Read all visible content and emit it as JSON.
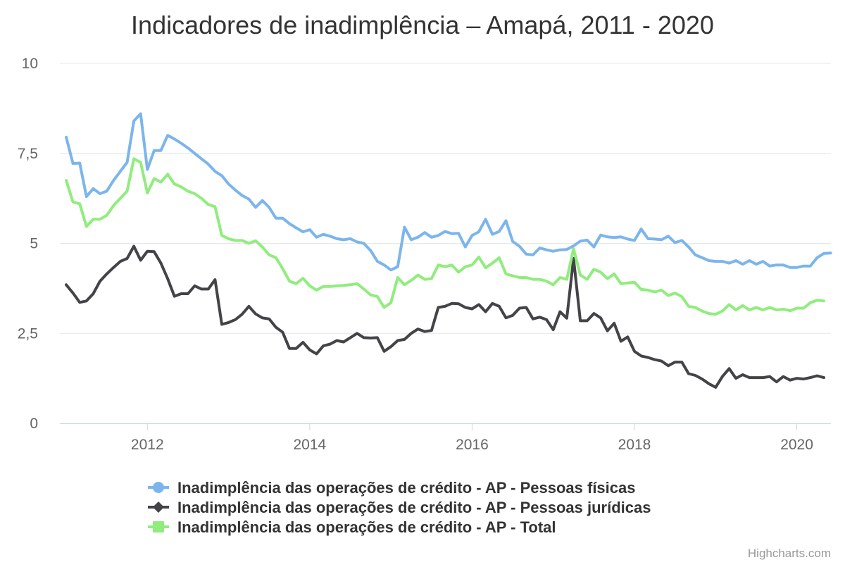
{
  "chart_data": {
    "type": "line",
    "title": "Indicadores de inadimplência – Amapá, 2011 - 2020",
    "credits": "Highcharts.com",
    "legend_position": "bottom-center",
    "grid": true,
    "x_range": [
      "2011-01",
      "2020-05"
    ],
    "ylim": [
      0,
      10
    ],
    "y_ticks": [
      {
        "value": 0,
        "label": "0"
      },
      {
        "value": 2.5,
        "label": "2,5"
      },
      {
        "value": 5,
        "label": "5"
      },
      {
        "value": 7.5,
        "label": "7,5"
      },
      {
        "value": 10,
        "label": "10"
      }
    ],
    "x_ticks": [
      {
        "value": "2012-01",
        "label": "2012"
      },
      {
        "value": "2014-01",
        "label": "2014"
      },
      {
        "value": "2016-01",
        "label": "2016"
      },
      {
        "value": "2018-01",
        "label": "2018"
      },
      {
        "value": "2020-01",
        "label": "2020"
      }
    ],
    "start_month": "2011-01",
    "series": [
      {
        "name": "Inadimplência das operações de crédito - AP - Pessoas físicas",
        "color": "#7cb5ec",
        "marker": "circle",
        "values": [
          7.95,
          7.22,
          7.23,
          6.3,
          6.52,
          6.38,
          6.45,
          6.75,
          7.0,
          7.25,
          8.4,
          8.6,
          7.05,
          7.58,
          7.58,
          8.0,
          7.9,
          7.78,
          7.65,
          7.5,
          7.35,
          7.2,
          7.0,
          6.88,
          6.65,
          6.48,
          6.33,
          6.23,
          6.0,
          6.19,
          6.0,
          5.7,
          5.7,
          5.55,
          5.43,
          5.32,
          5.38,
          5.17,
          5.25,
          5.2,
          5.13,
          5.1,
          5.13,
          5.04,
          5.0,
          4.8,
          4.5,
          4.4,
          4.26,
          4.35,
          5.45,
          5.1,
          5.17,
          5.3,
          5.17,
          5.22,
          5.33,
          5.27,
          5.28,
          4.9,
          5.22,
          5.32,
          5.67,
          5.25,
          5.33,
          5.63,
          5.05,
          4.92,
          4.7,
          4.68,
          4.87,
          4.82,
          4.78,
          4.82,
          4.83,
          4.93,
          5.06,
          5.09,
          4.9,
          5.23,
          5.18,
          5.16,
          5.18,
          5.12,
          5.08,
          5.4,
          5.13,
          5.12,
          5.1,
          5.2,
          5.02,
          5.08,
          4.9,
          4.68,
          4.6,
          4.52,
          4.5,
          4.5,
          4.45,
          4.52,
          4.42,
          4.52,
          4.42,
          4.5,
          4.37,
          4.4,
          4.4,
          4.33,
          4.33,
          4.37,
          4.37,
          4.6,
          4.72,
          4.73
        ]
      },
      {
        "name": "Inadimplência das operações de crédito - AP - Pessoas jurídicas",
        "color": "#434348",
        "marker": "diamond",
        "values": [
          3.85,
          3.62,
          3.36,
          3.4,
          3.6,
          3.95,
          4.15,
          4.33,
          4.5,
          4.58,
          4.92,
          4.53,
          4.78,
          4.77,
          4.45,
          4.02,
          3.53,
          3.6,
          3.6,
          3.82,
          3.73,
          3.73,
          3.99,
          2.75,
          2.8,
          2.88,
          3.03,
          3.25,
          3.04,
          2.93,
          2.9,
          2.67,
          2.53,
          2.08,
          2.08,
          2.25,
          2.04,
          1.93,
          2.15,
          2.2,
          2.3,
          2.26,
          2.38,
          2.5,
          2.38,
          2.37,
          2.38,
          2.0,
          2.13,
          2.3,
          2.33,
          2.5,
          2.62,
          2.55,
          2.58,
          3.22,
          3.25,
          3.33,
          3.32,
          3.22,
          3.18,
          3.3,
          3.1,
          3.33,
          3.25,
          2.93,
          3.0,
          3.2,
          3.22,
          2.9,
          2.95,
          2.88,
          2.6,
          3.1,
          2.92,
          4.58,
          2.85,
          2.85,
          3.05,
          2.93,
          2.57,
          2.78,
          2.28,
          2.4,
          2.0,
          1.87,
          1.83,
          1.77,
          1.73,
          1.6,
          1.7,
          1.7,
          1.38,
          1.33,
          1.23,
          1.1,
          1.0,
          1.3,
          1.52,
          1.25,
          1.35,
          1.27,
          1.27,
          1.27,
          1.3,
          1.15,
          1.3,
          1.2,
          1.25,
          1.23,
          1.27,
          1.32,
          1.27
        ]
      },
      {
        "name": "Inadimplência das operações de crédito - AP - Total",
        "color": "#90ed7d",
        "marker": "square",
        "values": [
          6.75,
          6.15,
          6.1,
          5.47,
          5.67,
          5.67,
          5.78,
          6.05,
          6.25,
          6.45,
          7.35,
          7.25,
          6.4,
          6.8,
          6.7,
          6.92,
          6.65,
          6.57,
          6.45,
          6.38,
          6.25,
          6.08,
          6.02,
          5.22,
          5.13,
          5.08,
          5.08,
          5.0,
          5.07,
          4.9,
          4.68,
          4.6,
          4.3,
          3.95,
          3.88,
          4.03,
          3.82,
          3.7,
          3.8,
          3.8,
          3.82,
          3.83,
          3.85,
          3.88,
          3.73,
          3.57,
          3.52,
          3.22,
          3.35,
          4.05,
          3.85,
          3.97,
          4.12,
          4.0,
          4.02,
          4.4,
          4.35,
          4.4,
          4.2,
          4.35,
          4.4,
          4.62,
          4.32,
          4.45,
          4.6,
          4.15,
          4.1,
          4.05,
          4.05,
          4.0,
          4.0,
          3.95,
          3.85,
          4.05,
          4.0,
          4.85,
          4.12,
          4.0,
          4.28,
          4.2,
          4.02,
          4.15,
          3.88,
          3.9,
          3.92,
          3.72,
          3.7,
          3.65,
          3.7,
          3.55,
          3.62,
          3.52,
          3.25,
          3.22,
          3.12,
          3.05,
          3.03,
          3.12,
          3.3,
          3.15,
          3.27,
          3.15,
          3.22,
          3.15,
          3.22,
          3.15,
          3.17,
          3.13,
          3.2,
          3.2,
          3.35,
          3.42,
          3.4
        ]
      }
    ]
  }
}
